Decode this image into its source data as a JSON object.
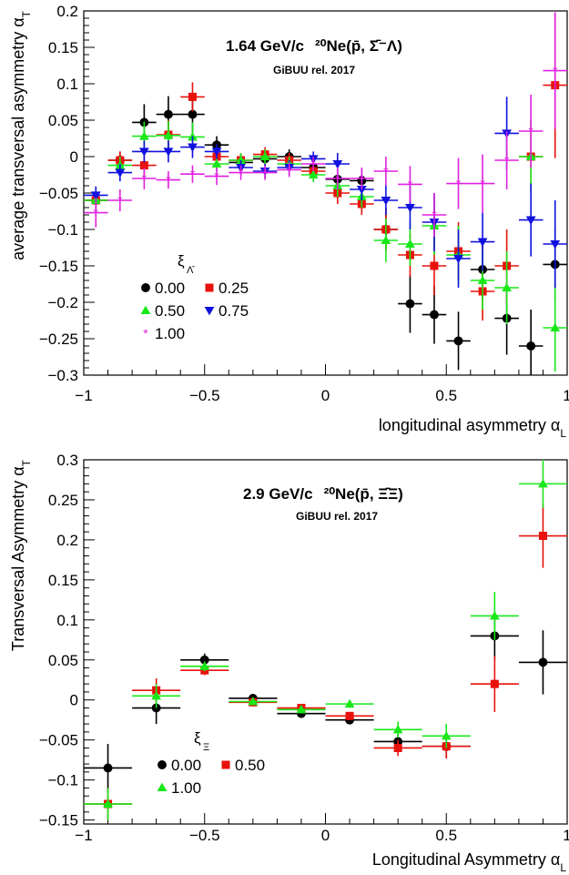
{
  "chart_data": [
    {
      "type": "scatter",
      "title": "1.64 GeV/c",
      "reaction": "²⁰Ne(p̄, Σ̄⁻Λ)",
      "subtitle": "GiBUU rel. 2017",
      "xlabel": "longitudinal asymmetry α_L",
      "ylabel": "average transversal asymmetry α_T",
      "xlim": [
        -1,
        1
      ],
      "ylim": [
        -0.3,
        0.2
      ],
      "xticks": [
        "−1",
        "−0.5",
        "0",
        "0.5",
        "1"
      ],
      "yticks": [
        "−0.3",
        "−0.25",
        "−0.2",
        "−0.15",
        "−0.1",
        "−0.05",
        "0",
        "0.05",
        "0.1",
        "0.15",
        "0.2"
      ],
      "grid": false,
      "legend": {
        "title": "ξ",
        "title_subscript": "Λ̄",
        "placement": "lower-left",
        "entries": [
          "0.00",
          "0.25",
          "0.50",
          "0.75",
          "1.00"
        ]
      },
      "series": [
        {
          "name": "0.00",
          "color": "#000000",
          "marker": "circle",
          "x": [
            -0.95,
            -0.85,
            -0.75,
            -0.65,
            -0.55,
            -0.45,
            -0.35,
            -0.25,
            -0.15,
            -0.05,
            0.05,
            0.15,
            0.25,
            0.35,
            0.45,
            0.55,
            0.65,
            0.75,
            0.85,
            0.95
          ],
          "y": [
            -0.06,
            -0.005,
            0.047,
            0.058,
            0.058,
            0.016,
            -0.008,
            -0.003,
            0.0,
            -0.015,
            -0.031,
            -0.033,
            -0.1,
            -0.202,
            -0.217,
            -0.253,
            -0.155,
            -0.222,
            -0.26,
            -0.148
          ],
          "err": [
            0.012,
            0.012,
            0.025,
            0.025,
            0.025,
            0.012,
            0.012,
            0.01,
            0.01,
            0.01,
            0.015,
            0.015,
            0.03,
            0.04,
            0.04,
            0.04,
            0.04,
            0.05,
            0.05,
            0.05
          ]
        },
        {
          "name": "0.25",
          "color": "#e8120c",
          "marker": "square",
          "x": [
            -0.95,
            -0.85,
            -0.75,
            -0.65,
            -0.55,
            -0.45,
            -0.35,
            -0.25,
            -0.15,
            -0.05,
            0.05,
            0.15,
            0.25,
            0.35,
            0.45,
            0.55,
            0.65,
            0.75,
            0.85,
            0.95
          ],
          "y": [
            -0.06,
            -0.005,
            -0.012,
            0.03,
            0.082,
            0.0,
            -0.005,
            0.003,
            -0.005,
            -0.02,
            -0.05,
            -0.065,
            -0.1,
            -0.135,
            -0.15,
            -0.13,
            -0.185,
            -0.15,
            0.0,
            0.098
          ],
          "err": [
            0.012,
            0.012,
            0.02,
            0.02,
            0.02,
            0.01,
            0.01,
            0.01,
            0.01,
            0.01,
            0.015,
            0.015,
            0.03,
            0.03,
            0.04,
            0.04,
            0.04,
            0.05,
            0.05,
            0.1
          ]
        },
        {
          "name": "0.50",
          "color": "#18e818",
          "marker": "triangle-up",
          "x": [
            -0.95,
            -0.85,
            -0.75,
            -0.65,
            -0.55,
            -0.45,
            -0.35,
            -0.25,
            -0.15,
            -0.05,
            0.05,
            0.15,
            0.25,
            0.35,
            0.45,
            0.55,
            0.65,
            0.75,
            0.85,
            0.95
          ],
          "y": [
            -0.06,
            -0.012,
            0.028,
            0.029,
            0.027,
            -0.01,
            -0.005,
            0.0,
            -0.01,
            -0.025,
            -0.04,
            -0.055,
            -0.115,
            -0.12,
            -0.095,
            -0.135,
            -0.17,
            -0.18,
            0.0,
            -0.235
          ],
          "err": [
            0.012,
            0.012,
            0.02,
            0.02,
            0.02,
            0.01,
            0.01,
            0.01,
            0.01,
            0.01,
            0.015,
            0.015,
            0.03,
            0.03,
            0.04,
            0.04,
            0.04,
            0.05,
            0.05,
            0.06
          ]
        },
        {
          "name": "0.75",
          "color": "#1010e0",
          "marker": "triangle-down",
          "x": [
            -0.95,
            -0.85,
            -0.75,
            -0.65,
            -0.55,
            -0.45,
            -0.35,
            -0.25,
            -0.15,
            -0.05,
            0.05,
            0.15,
            0.25,
            0.35,
            0.45,
            0.55,
            0.65,
            0.75,
            0.85,
            0.95
          ],
          "y": [
            -0.053,
            -0.022,
            0.007,
            0.007,
            0.013,
            0.007,
            -0.015,
            -0.02,
            -0.015,
            -0.003,
            -0.01,
            -0.045,
            -0.06,
            -0.07,
            -0.09,
            -0.14,
            -0.117,
            0.032,
            -0.087,
            -0.12
          ],
          "err": [
            0.012,
            0.012,
            0.015,
            0.015,
            0.015,
            0.01,
            0.01,
            0.01,
            0.01,
            0.01,
            0.015,
            0.015,
            0.02,
            0.03,
            0.04,
            0.04,
            0.04,
            0.05,
            0.05,
            0.06
          ]
        },
        {
          "name": "1.00",
          "color": "#e020e0",
          "marker": "star",
          "x": [
            -0.95,
            -0.85,
            -0.75,
            -0.65,
            -0.55,
            -0.45,
            -0.35,
            -0.25,
            -0.15,
            -0.05,
            0.05,
            0.15,
            0.25,
            0.35,
            0.45,
            0.55,
            0.65,
            0.75,
            0.85,
            0.95
          ],
          "y": [
            -0.077,
            -0.06,
            -0.03,
            -0.032,
            -0.024,
            -0.027,
            -0.022,
            -0.022,
            -0.018,
            -0.01,
            -0.03,
            -0.03,
            -0.02,
            -0.038,
            -0.08,
            -0.037,
            -0.037,
            -0.005,
            0.035,
            0.118
          ],
          "err": [
            0.02,
            0.015,
            0.015,
            0.012,
            0.012,
            0.012,
            0.01,
            0.01,
            0.01,
            0.01,
            0.015,
            0.015,
            0.02,
            0.025,
            0.03,
            0.035,
            0.04,
            0.04,
            0.05,
            0.08
          ]
        }
      ]
    },
    {
      "type": "scatter",
      "title": "2.9 GeV/c",
      "reaction": "²⁰Ne(p̄, Ξ̄Ξ)",
      "subtitle": "GiBUU rel. 2017",
      "xlabel": "Longitudinal Asymmetry α_L",
      "ylabel": "Transversal Asymmetry α_T",
      "xlim": [
        -1,
        1
      ],
      "ylim": [
        -0.155,
        0.3
      ],
      "xticks": [
        "−1",
        "−0.5",
        "0",
        "0.5",
        "1"
      ],
      "yticks": [
        "−0.15",
        "−0.1",
        "−0.05",
        "0",
        "0.05",
        "0.1",
        "0.15",
        "0.2",
        "0.25",
        "0.3"
      ],
      "grid": false,
      "legend": {
        "title": "ξ",
        "title_subscript": "Ξ",
        "placement": "lower-left",
        "entries": [
          "0.00",
          "0.50",
          "1.00"
        ]
      },
      "series": [
        {
          "name": "0.00",
          "color": "#000000",
          "marker": "circle",
          "x": [
            -0.9,
            -0.7,
            -0.5,
            -0.3,
            -0.1,
            0.1,
            0.3,
            0.5,
            0.7,
            0.9
          ],
          "y": [
            -0.085,
            -0.01,
            0.05,
            0.002,
            -0.017,
            -0.025,
            -0.052,
            -0.058,
            0.08,
            0.047
          ],
          "err": [
            0.03,
            0.02,
            0.008,
            0.004,
            0.004,
            0.005,
            0.01,
            0.015,
            0.03,
            0.04
          ]
        },
        {
          "name": "0.50",
          "color": "#e8120c",
          "marker": "square",
          "x": [
            -0.9,
            -0.7,
            -0.5,
            -0.3,
            -0.1,
            0.1,
            0.3,
            0.5,
            0.7,
            0.9
          ],
          "y": [
            -0.13,
            0.012,
            0.037,
            -0.003,
            -0.01,
            -0.02,
            -0.06,
            -0.058,
            0.02,
            0.205
          ],
          "err": [
            0.02,
            0.015,
            0.006,
            0.004,
            0.004,
            0.005,
            0.01,
            0.015,
            0.035,
            0.04
          ]
        },
        {
          "name": "1.00",
          "color": "#18e818",
          "marker": "triangle-up",
          "x": [
            -0.9,
            -0.7,
            -0.5,
            -0.3,
            -0.1,
            0.1,
            0.3,
            0.5,
            0.7,
            0.9
          ],
          "y": [
            -0.13,
            0.005,
            0.042,
            -0.002,
            -0.012,
            -0.005,
            -0.037,
            -0.045,
            0.105,
            0.27
          ],
          "err": [
            0.02,
            0.015,
            0.006,
            0.004,
            0.004,
            0.005,
            0.01,
            0.015,
            0.03,
            0.03
          ]
        }
      ]
    }
  ]
}
